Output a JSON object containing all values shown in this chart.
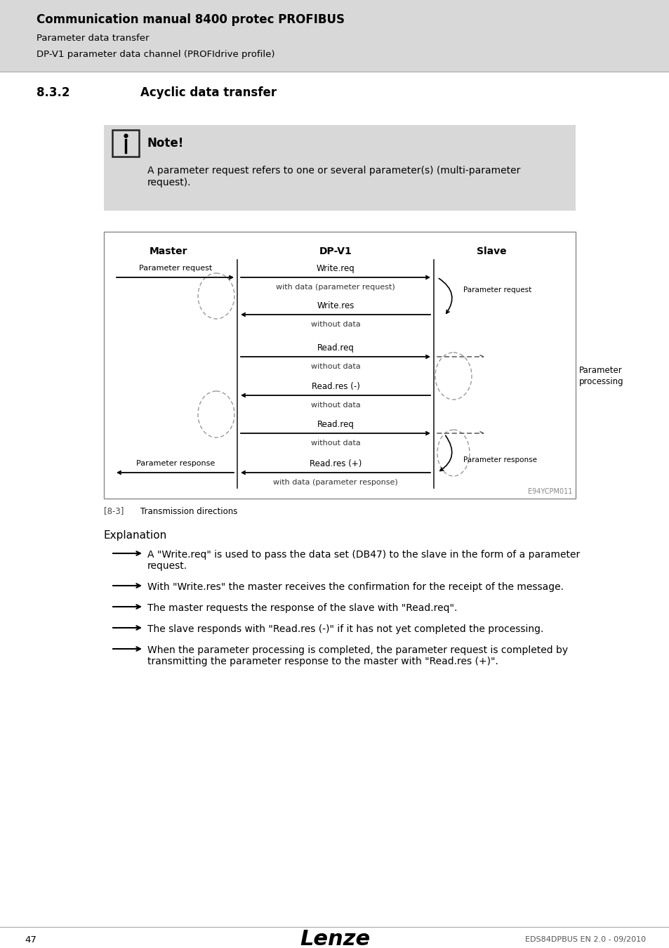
{
  "page_bg": "#f0f0f0",
  "content_bg": "#ffffff",
  "header_bg": "#d8d8d8",
  "note_bg": "#d8d8d8",
  "header_title": "Communication manual 8400 protec PROFIBUS",
  "header_sub1": "Parameter data transfer",
  "header_sub2": "DP-V1 parameter data channel (PROFIdrive profile)",
  "section_num": "8.3.2",
  "section_title": "Acyclic data transfer",
  "note_title": "Note!",
  "note_line1": "A parameter request refers to one or several parameter(s) (multi-parameter",
  "note_line2": "request).",
  "col_master": "Master",
  "col_dpv1": "DP-V1",
  "col_slave": "Slave",
  "diagram_label": "E94YCPM011",
  "caption_num": "[8-3]",
  "caption_text": "Transmission directions",
  "explanation_title": "Explanation",
  "bullets": [
    [
      "A \"Write.req\" is used to pass the data set (DB47) to the slave in the form of a parameter",
      "request."
    ],
    [
      "With \"Write.res\" the master receives the confirmation for the receipt of the message."
    ],
    [
      "The master requests the response of the slave with \"Read.req\"."
    ],
    [
      "The slave responds with \"Read.res (-)\" if it has not yet completed the processing."
    ],
    [
      "When the parameter processing is completed, the parameter request is completed by",
      "transmitting the parameter response to the master with \"Read.res (+)\"."
    ]
  ],
  "footer_page": "47",
  "footer_brand": "Lenze",
  "footer_doc": "EDS84DPBUS EN 2.0 - 09/2010"
}
